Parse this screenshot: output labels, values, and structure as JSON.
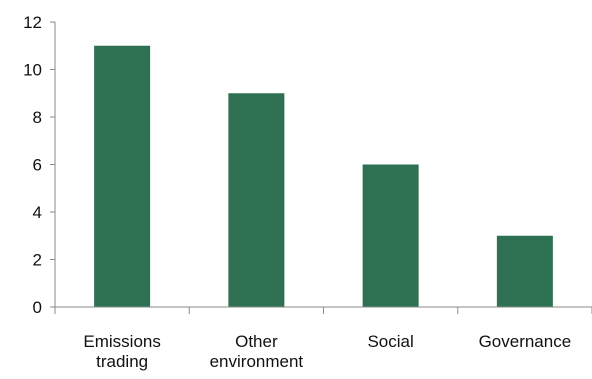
{
  "chart_data": {
    "type": "bar",
    "categories": [
      [
        "Emissions",
        "trading"
      ],
      [
        "Other",
        "environment"
      ],
      [
        "Social"
      ],
      [
        "Governance"
      ]
    ],
    "values": [
      11,
      9,
      6,
      3
    ],
    "ylim": [
      0,
      12
    ],
    "yticks": [
      0,
      2,
      4,
      6,
      8,
      10,
      12
    ],
    "grid": false,
    "legend": "none",
    "colors": {
      "bar": "#2e7152",
      "axis": "#8a8a8a"
    }
  }
}
